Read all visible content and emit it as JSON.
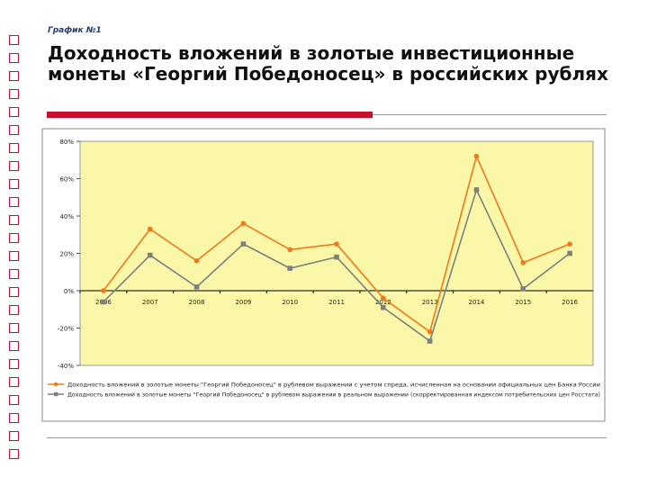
{
  "header": {
    "label": "График №1",
    "title": "Доходность вложений в золотые инвестиционные монеты «Георгий Победоносец» в российских рублях"
  },
  "colors": {
    "plot_bg": "#faf8a8",
    "series1": "#f07818",
    "series2": "#7f7f7f",
    "accent": "#c8102e"
  },
  "chart_data": {
    "type": "line",
    "title": "",
    "xlabel": "",
    "ylabel": "",
    "ylim": [
      -0.4,
      0.8
    ],
    "yticks": [
      0.8,
      0.6,
      0.4,
      0.2,
      0.0,
      -0.2,
      -0.4
    ],
    "ytick_labels": [
      "80%",
      "60%",
      "40%",
      "20%",
      "0%",
      "-20%",
      "-40%"
    ],
    "categories": [
      "2006",
      "2007",
      "2008",
      "2009",
      "2010",
      "2011",
      "2012",
      "2013",
      "2014",
      "2015",
      "2016"
    ],
    "grid": false,
    "legend_position": "bottom",
    "series": [
      {
        "name": "Доходность вложений в золотые монеты \"Георгий Победоносец\" в рублевом выражении с учетом спреда, исчисленная на основании официальных цен Банка России",
        "marker": "circle",
        "values": [
          0.0,
          0.33,
          0.16,
          0.36,
          0.22,
          0.25,
          -0.04,
          -0.22,
          0.72,
          0.15,
          0.25
        ]
      },
      {
        "name": "Доходность вложений в золотые монеты \"Георгий Победоносец\" в рублевом выражении в реальном выражении (скорректированная индексом потребительских цен Росстата)",
        "marker": "square",
        "values": [
          -0.06,
          0.19,
          0.02,
          0.25,
          0.12,
          0.18,
          -0.09,
          -0.27,
          0.54,
          0.01,
          0.2
        ]
      }
    ]
  }
}
